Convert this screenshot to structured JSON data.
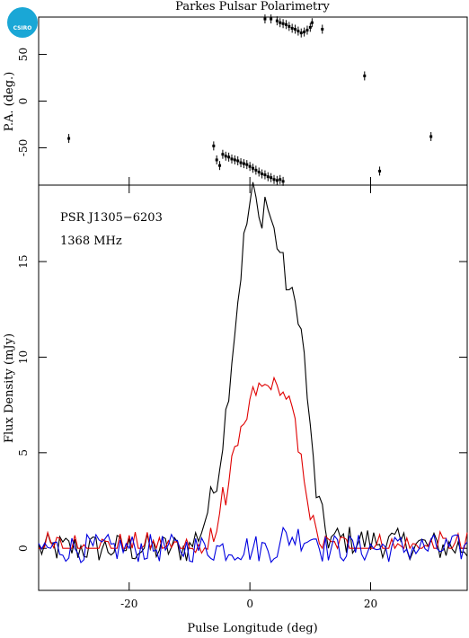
{
  "title": "Parkes Pulsar Polarimetry",
  "logo_text": "CSIRO",
  "colors": {
    "total": "#000000",
    "linear": "#e00000",
    "circular": "#0000e0",
    "logo": "#1aa7d6"
  },
  "chart_data": [
    {
      "type": "scatter",
      "ylabel": "P.A. (deg.)",
      "xlim": [
        -35,
        36
      ],
      "ylim": [
        -90,
        90
      ],
      "yticks": [
        -50,
        0,
        50
      ],
      "points": [
        [
          -30,
          -40
        ],
        [
          -6,
          -48
        ],
        [
          -5.5,
          -63
        ],
        [
          -5,
          -69
        ],
        [
          -4.5,
          -57
        ],
        [
          -4,
          -59
        ],
        [
          -3.5,
          -60
        ],
        [
          -3,
          -62
        ],
        [
          -2.5,
          -63
        ],
        [
          -2,
          -64
        ],
        [
          -1.5,
          -66
        ],
        [
          -1,
          -67
        ],
        [
          -0.5,
          -68
        ],
        [
          0,
          -70
        ],
        [
          0.5,
          -72
        ],
        [
          1,
          -74
        ],
        [
          1.5,
          -76
        ],
        [
          2,
          -78
        ],
        [
          2.5,
          -79
        ],
        [
          3,
          -81
        ],
        [
          3.5,
          -82
        ],
        [
          4,
          -84
        ],
        [
          4.5,
          -85
        ],
        [
          5,
          -84
        ],
        [
          5.5,
          -86
        ],
        [
          2.5,
          88
        ],
        [
          3.5,
          88
        ],
        [
          4.5,
          86
        ],
        [
          5,
          84
        ],
        [
          5.5,
          83
        ],
        [
          6,
          82
        ],
        [
          6.5,
          80
        ],
        [
          7,
          78
        ],
        [
          7.5,
          77
        ],
        [
          8,
          75
        ],
        [
          8.5,
          73
        ],
        [
          9,
          74
        ],
        [
          9.5,
          76
        ],
        [
          10,
          79
        ],
        [
          10.3,
          84
        ],
        [
          12,
          77
        ],
        [
          19,
          27
        ],
        [
          21.5,
          -75
        ],
        [
          30,
          -38
        ]
      ]
    },
    {
      "type": "line",
      "annotations": [
        "PSR J1305−6203",
        "1368 MHz"
      ],
      "xlabel": "Pulse Longitude (deg)",
      "ylabel": "Flux Density (mJy)",
      "xlim": [
        -35,
        36
      ],
      "ylim": [
        -2.2,
        19
      ],
      "xticks": [
        -20,
        0,
        20
      ],
      "yticks": [
        0,
        5,
        10,
        15
      ],
      "series": [
        {
          "key": "total",
          "x": [
            -35,
            -10,
            -8,
            -6,
            -5,
            -4,
            -3,
            -2,
            -1,
            0,
            0.5,
            1,
            1.5,
            2,
            2.5,
            3,
            3.5,
            4,
            5,
            6,
            7,
            8,
            9,
            10,
            11,
            12,
            13,
            36
          ],
          "y": [
            0,
            0,
            1,
            3,
            4.5,
            7,
            10,
            13,
            16,
            18,
            18.6,
            18.2,
            17,
            17.5,
            18.3,
            17.8,
            17.2,
            16.5,
            15.5,
            14,
            13,
            12.5,
            10,
            6,
            3,
            1.5,
            0.5,
            0
          ]
        },
        {
          "key": "linear",
          "x": [
            -35,
            -8,
            -6,
            -5,
            -4,
            -3,
            -2,
            -1,
            0,
            1,
            2,
            3,
            4,
            5,
            6,
            7,
            8,
            9,
            10,
            11,
            12,
            36
          ],
          "y": [
            0,
            0,
            0.5,
            2,
            3,
            4.2,
            5,
            6,
            7.5,
            8,
            8.3,
            8.4,
            8.2,
            8,
            7.8,
            7,
            5,
            3.5,
            1.5,
            0.5,
            0,
            0
          ]
        },
        {
          "key": "circular",
          "x": [
            -35,
            36
          ],
          "y": [
            0,
            0
          ]
        }
      ]
    }
  ]
}
